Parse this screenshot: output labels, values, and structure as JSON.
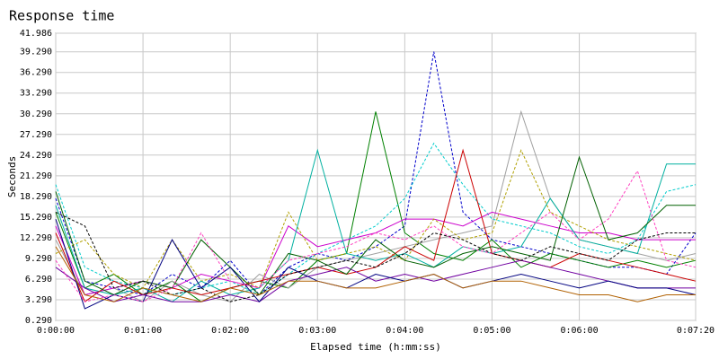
{
  "chart_data": {
    "type": "line",
    "title": "Response time",
    "xlabel": "Elapsed time (h:mm:ss)",
    "ylabel": "Seconds",
    "x": [
      0,
      20,
      40,
      60,
      80,
      100,
      120,
      140,
      160,
      180,
      200,
      220,
      240,
      260,
      280,
      300,
      320,
      340,
      360,
      380,
      400,
      420,
      440
    ],
    "xlim": [
      0,
      440
    ],
    "xticks": [
      {
        "value": 0,
        "label": "0:00:00"
      },
      {
        "value": 60,
        "label": "0:01:00"
      },
      {
        "value": 120,
        "label": "0:02:00"
      },
      {
        "value": 180,
        "label": "0:03:00"
      },
      {
        "value": 240,
        "label": "0:04:00"
      },
      {
        "value": 300,
        "label": "0:05:00"
      },
      {
        "value": 360,
        "label": "0:06:00"
      },
      {
        "value": 440,
        "label": "0:07:20"
      }
    ],
    "ylim": [
      0.29,
      41.986
    ],
    "yticks": [
      {
        "value": 0.29,
        "label": "0.290"
      },
      {
        "value": 3.29,
        "label": "3.290"
      },
      {
        "value": 6.29,
        "label": "6.290"
      },
      {
        "value": 9.29,
        "label": "9.290"
      },
      {
        "value": 12.29,
        "label": "12.290"
      },
      {
        "value": 15.29,
        "label": "15.290"
      },
      {
        "value": 18.29,
        "label": "18.290"
      },
      {
        "value": 21.29,
        "label": "21.290"
      },
      {
        "value": 24.29,
        "label": "24.290"
      },
      {
        "value": 27.29,
        "label": "27.290"
      },
      {
        "value": 30.29,
        "label": "30.290"
      },
      {
        "value": 33.29,
        "label": "33.290"
      },
      {
        "value": 36.29,
        "label": "36.290"
      },
      {
        "value": 39.29,
        "label": "39.290"
      },
      41.986
    ],
    "grid": true,
    "series": [
      {
        "color": "#0000cc",
        "dashed": true,
        "values": [
          18,
          6,
          5,
          4,
          7,
          5,
          9,
          4,
          8,
          10,
          9,
          11,
          14,
          39.3,
          16,
          12,
          11,
          10,
          9,
          8,
          8,
          7,
          13
        ]
      },
      {
        "color": "#008000",
        "dashed": false,
        "values": [
          16,
          5,
          7,
          4,
          6,
          3,
          5,
          6,
          5,
          9,
          10,
          30.6,
          13,
          10,
          9,
          12,
          8,
          10,
          9,
          8,
          9,
          8,
          9
        ]
      },
      {
        "color": "#a0a0a0",
        "dashed": false,
        "values": [
          12,
          4,
          5,
          3,
          6,
          4,
          3,
          7,
          5,
          8,
          9,
          10,
          11,
          12,
          13,
          14,
          30.6,
          18,
          12,
          11,
          10,
          9,
          10
        ]
      },
      {
        "color": "#00cccc",
        "dashed": true,
        "values": [
          20,
          8,
          6,
          5,
          4,
          5,
          6,
          4,
          7,
          10,
          12,
          14,
          18,
          26,
          20,
          15,
          14,
          13,
          11,
          10,
          12,
          19,
          20
        ]
      },
      {
        "color": "#cc00cc",
        "dashed": false,
        "values": [
          14,
          4,
          5,
          6,
          5,
          7,
          6,
          5,
          14,
          11,
          12,
          13,
          15,
          15,
          14,
          16,
          15,
          14,
          13,
          13,
          12,
          12,
          12
        ]
      },
      {
        "color": "#b0a000",
        "dashed": true,
        "values": [
          10,
          12,
          7,
          5,
          12,
          6,
          7,
          5,
          16,
          9,
          10,
          11,
          9,
          15,
          12,
          13,
          25,
          16,
          14,
          12,
          11,
          10,
          9
        ]
      },
      {
        "color": "#00b0a0",
        "dashed": false,
        "values": [
          17,
          5,
          4,
          5,
          3,
          6,
          4,
          5,
          9,
          25,
          10,
          9,
          10,
          8,
          11,
          10,
          11,
          18,
          12,
          11,
          10,
          23,
          23
        ]
      },
      {
        "color": "#cc0000",
        "dashed": false,
        "values": [
          13,
          3,
          6,
          4,
          5,
          4,
          5,
          6,
          7,
          8,
          7,
          8,
          11,
          9,
          25,
          10,
          9,
          8,
          10,
          9,
          8,
          7,
          6
        ]
      },
      {
        "color": "#7000a0",
        "dashed": false,
        "values": [
          8,
          5,
          3,
          4,
          3,
          3,
          4,
          3,
          6,
          7,
          8,
          6,
          7,
          6,
          7,
          8,
          9,
          8,
          7,
          6,
          5,
          5,
          5
        ]
      },
      {
        "color": "#006000",
        "dashed": false,
        "values": [
          19,
          6,
          4,
          6,
          5,
          12,
          8,
          4,
          10,
          9,
          7,
          12,
          9,
          8,
          10,
          11,
          10,
          9,
          24,
          12,
          13,
          17,
          17
        ]
      },
      {
        "color": "#000080",
        "dashed": false,
        "values": [
          15,
          2,
          4,
          3,
          12,
          5,
          8,
          3,
          8,
          6,
          5,
          7,
          6,
          7,
          5,
          6,
          7,
          6,
          5,
          6,
          5,
          5,
          4
        ]
      },
      {
        "color": "#000000",
        "dashed": true,
        "values": [
          16,
          14,
          5,
          6,
          4,
          5,
          3,
          4,
          7,
          8,
          9,
          8,
          10,
          13,
          12,
          10,
          9,
          11,
          10,
          9,
          12,
          13,
          13
        ]
      },
      {
        "color": "#b06000",
        "dashed": false,
        "values": [
          11,
          4,
          3,
          5,
          4,
          3,
          5,
          4,
          6,
          6,
          5,
          5,
          6,
          7,
          5,
          6,
          6,
          5,
          4,
          4,
          3,
          4,
          4
        ]
      },
      {
        "color": "#ff40c0",
        "dashed": true,
        "values": [
          9,
          3,
          4,
          3,
          5,
          13,
          6,
          5,
          9,
          10,
          11,
          13,
          12,
          14,
          11,
          10,
          13,
          16,
          12,
          15,
          22,
          9,
          8
        ]
      }
    ]
  }
}
